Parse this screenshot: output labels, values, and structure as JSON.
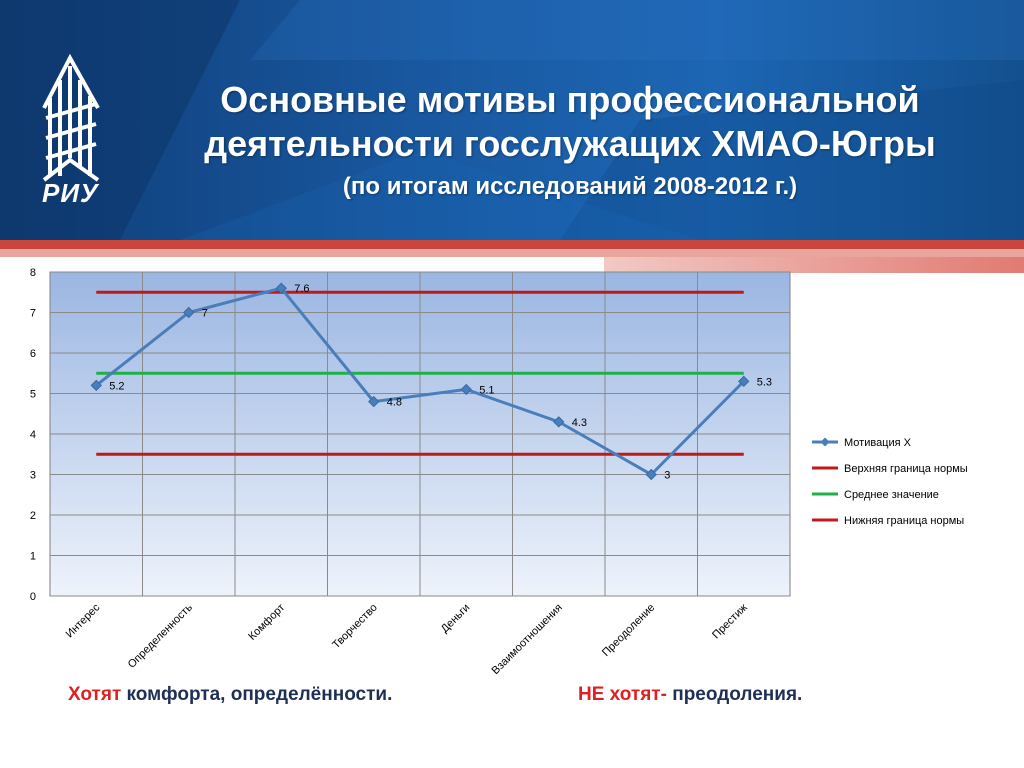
{
  "header": {
    "title_line1": "Основные мотивы профессиональной",
    "title_line2": "деятельности госслужащих ХМАО-Югры",
    "subtitle": "(по итогам исследований 2008-2012 г.)",
    "logo_text": "РИУ"
  },
  "chart_data": {
    "type": "line",
    "categories": [
      "Интерес",
      "Определенность",
      "Комфорт",
      "Творчество",
      "Деньги",
      "Взаимоотношения",
      "Преодоление",
      "Престиж"
    ],
    "series": [
      {
        "name": "Мотивация Х",
        "values": [
          5.2,
          7,
          7.6,
          4.8,
          5.1,
          4.3,
          3,
          5.3
        ],
        "color": "#4a7ebb",
        "markers": "diamond",
        "data_labels": [
          "5.2",
          "7",
          "7.6",
          "4.8",
          "5.1",
          "4.3",
          "3",
          "5.3"
        ]
      },
      {
        "name": "Верхняя граница нормы",
        "values": [
          7.5,
          7.5,
          7.5,
          7.5,
          7.5,
          7.5,
          7.5,
          7.5
        ],
        "color": "#c0191b"
      },
      {
        "name": "Среднее значение",
        "values": [
          5.5,
          5.5,
          5.5,
          5.5,
          5.5,
          5.5,
          5.5,
          5.5
        ],
        "color": "#1fb04a"
      },
      {
        "name": "Нижняя граница нормы",
        "values": [
          3.5,
          3.5,
          3.5,
          3.5,
          3.5,
          3.5,
          3.5,
          3.5
        ],
        "color": "#c0191b"
      }
    ],
    "ylim": [
      0,
      8
    ],
    "yticks": [
      "0",
      "1",
      "2",
      "3",
      "4",
      "5",
      "6",
      "7",
      "8"
    ],
    "grid": true,
    "legend": "right"
  },
  "footer": {
    "left_highlight": "Хотят",
    "left_text": " комфорта, определённости.",
    "right_highlight": "НЕ хотят-",
    "right_text": "  преодоления."
  }
}
